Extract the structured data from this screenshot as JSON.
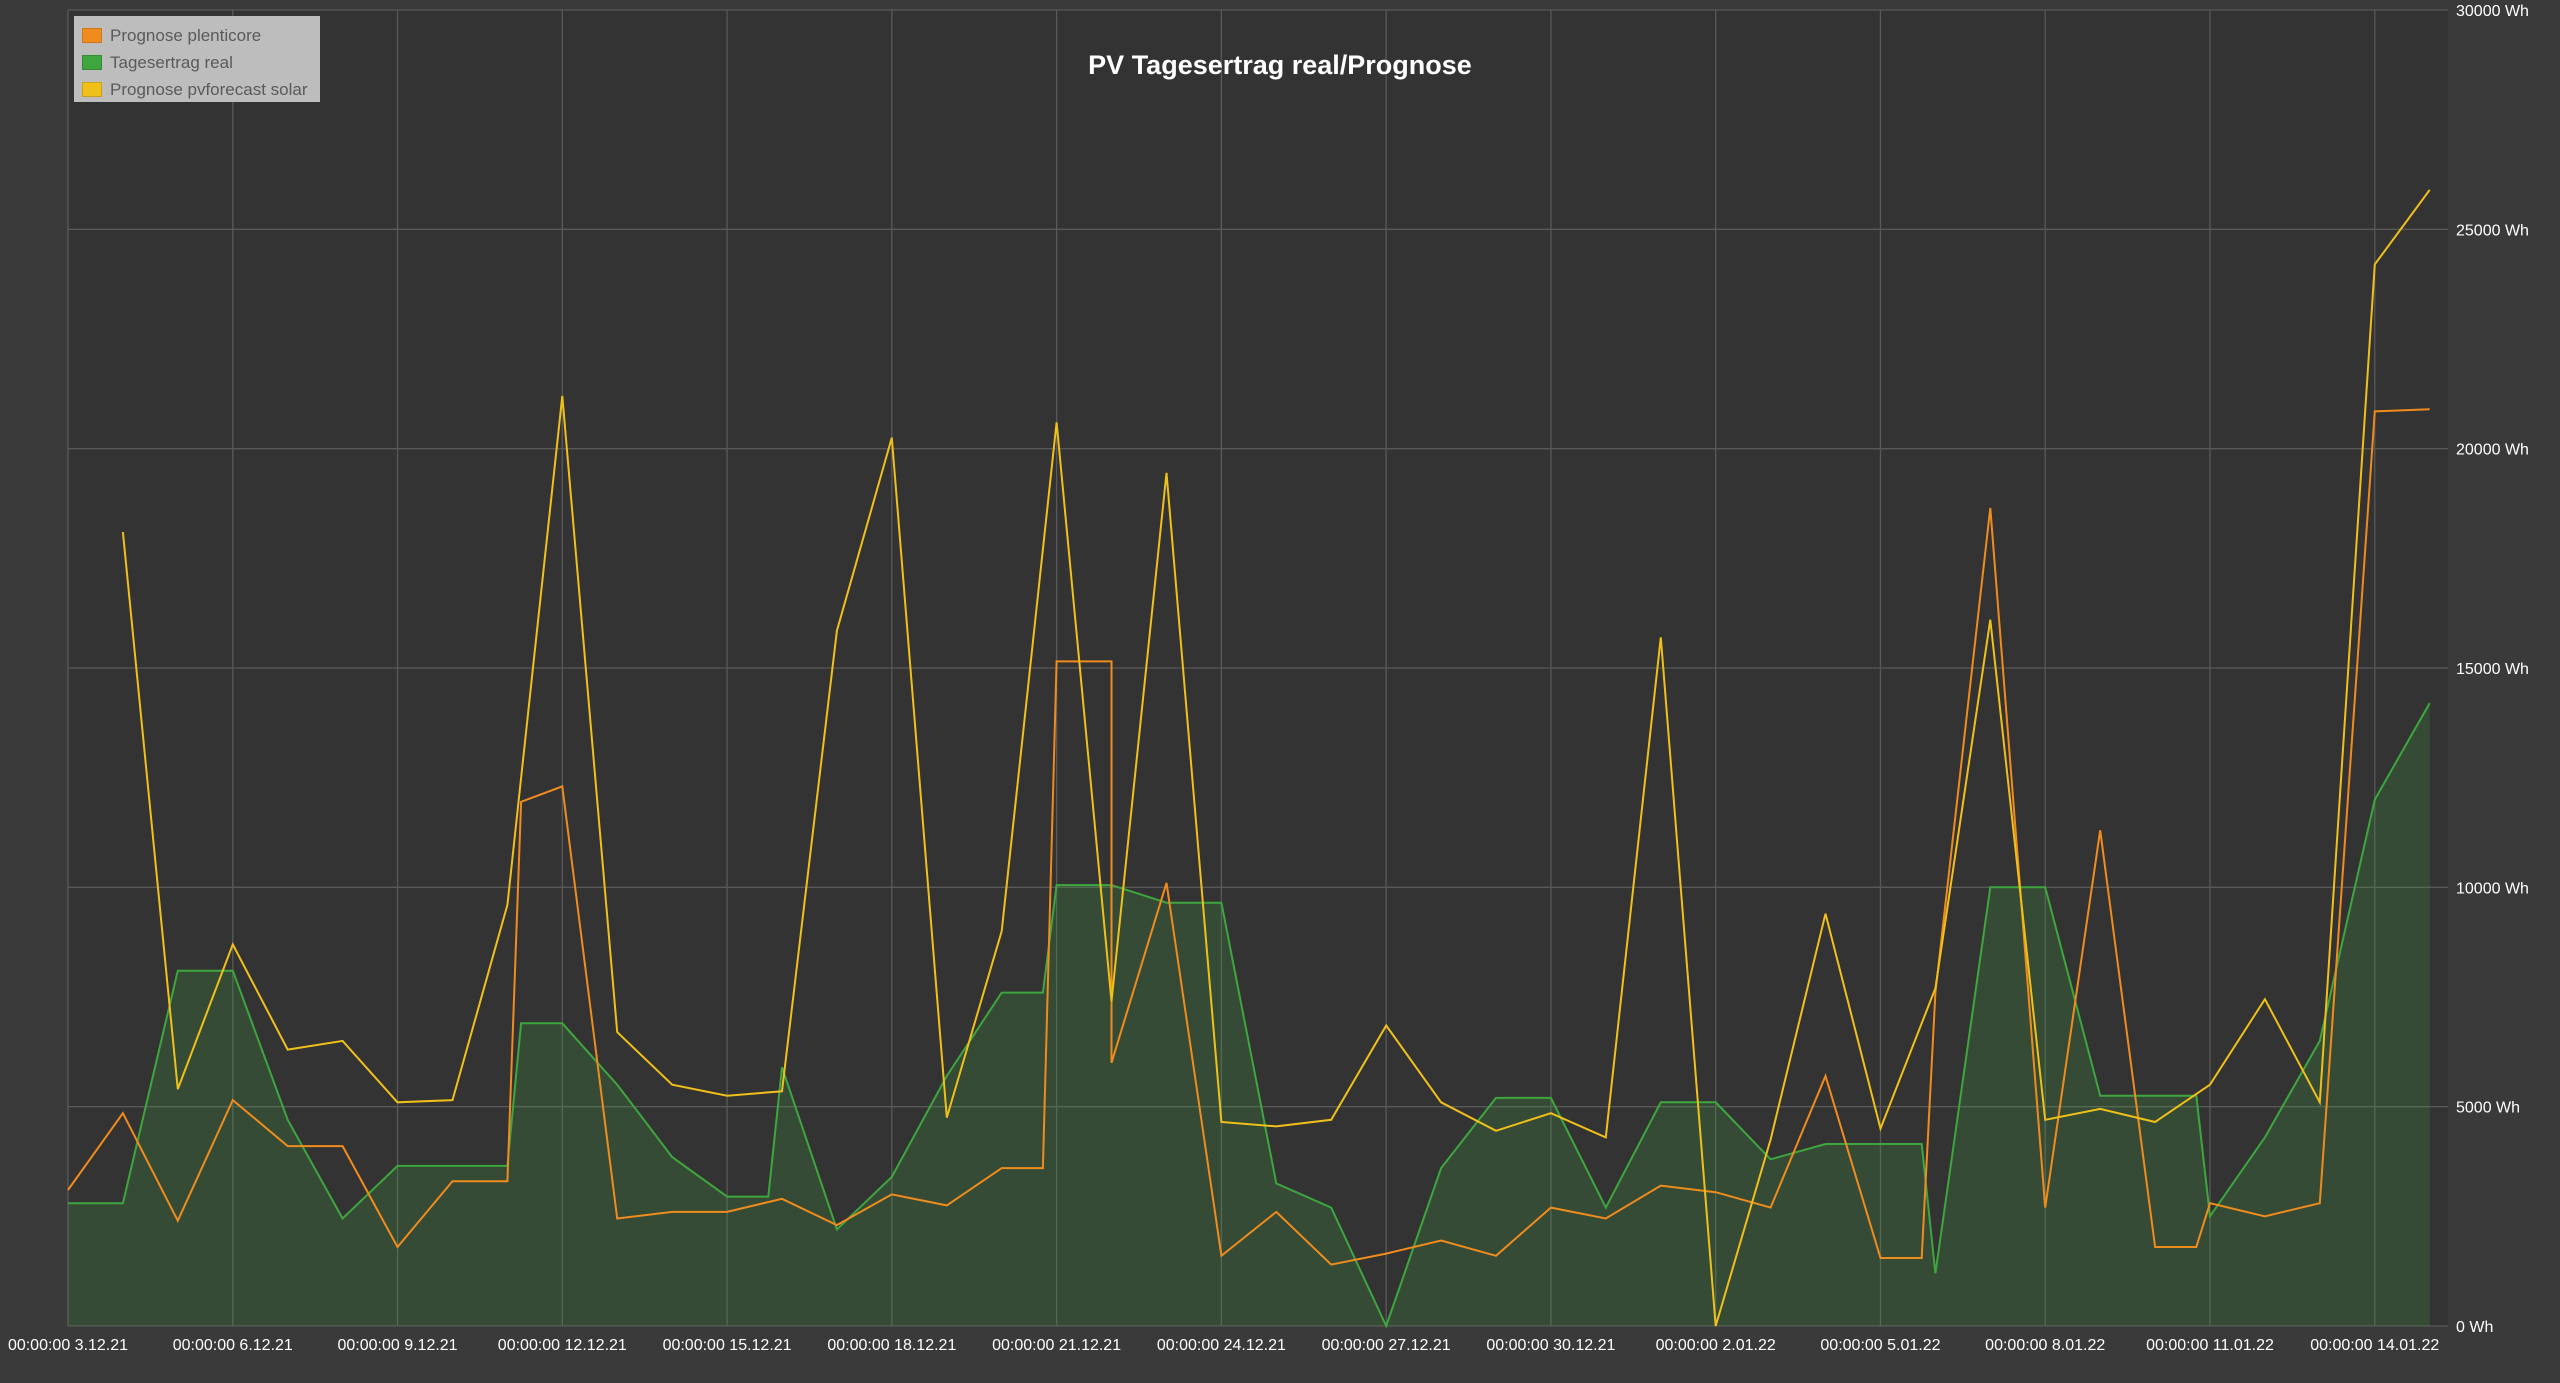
{
  "chart_data": {
    "type": "area",
    "title": "PV Tagesertrag real/Prognose",
    "xlabel": "",
    "ylabel": "",
    "ylim": [
      0,
      30000
    ],
    "y_unit": "Wh",
    "y_ticks": [
      "0 Wh",
      "5000 Wh",
      "10000 Wh",
      "15000 Wh",
      "20000 Wh",
      "25000 Wh",
      "30000 Wh"
    ],
    "y_tick_values": [
      0,
      5000,
      10000,
      15000,
      20000,
      25000,
      30000
    ],
    "x_ticks": [
      "00:00:00 3.12.21",
      "00:00:00 6.12.21",
      "00:00:00 9.12.21",
      "00:00:00 12.12.21",
      "00:00:00 15.12.21",
      "00:00:00 18.12.21",
      "00:00:00 21.12.21",
      "00:00:00 24.12.21",
      "00:00:00 27.12.21",
      "00:00:00 30.12.21",
      "00:00:00 2.01.22",
      "00:00:00 5.01.22",
      "00:00:00 8.01.22",
      "00:00:00 11.01.22",
      "00:00:00 14.01.22"
    ],
    "grid": true,
    "legend_position": "top-left",
    "series": [
      {
        "name": "Prognose plenticore",
        "color": "#f08c1e",
        "style": "line",
        "points": [
          [
            "2021-12-03 00:00",
            3100
          ],
          [
            "2021-12-04 00:00",
            4850
          ],
          [
            "2021-12-05 00:00",
            2400
          ],
          [
            "2021-12-06 00:00",
            5150
          ],
          [
            "2021-12-07 00:00",
            4100
          ],
          [
            "2021-12-08 00:00",
            4100
          ],
          [
            "2021-12-09 00:00",
            1800
          ],
          [
            "2021-12-10 00:00",
            3300
          ],
          [
            "2021-12-11 00:00",
            3300
          ],
          [
            "2021-12-11 06:00",
            11950
          ],
          [
            "2021-12-12 00:00",
            12300
          ],
          [
            "2021-12-13 00:00",
            2450
          ],
          [
            "2021-12-14 00:00",
            2600
          ],
          [
            "2021-12-15 00:00",
            2600
          ],
          [
            "2021-12-16 00:00",
            2900
          ],
          [
            "2021-12-17 00:00",
            2300
          ],
          [
            "2021-12-18 00:00",
            3000
          ],
          [
            "2021-12-19 00:00",
            2750
          ],
          [
            "2021-12-20 00:00",
            3600
          ],
          [
            "2021-12-20 18:00",
            3600
          ],
          [
            "2021-12-21 00:00",
            15150
          ],
          [
            "2021-12-22 00:00",
            15150
          ],
          [
            "2021-12-22 00:00",
            6000
          ],
          [
            "2021-12-23 00:00",
            10100
          ],
          [
            "2021-12-24 00:00",
            1600
          ],
          [
            "2021-12-25 00:00",
            2600
          ],
          [
            "2021-12-26 00:00",
            1400
          ],
          [
            "2021-12-27 00:00",
            1650
          ],
          [
            "2021-12-28 00:00",
            1950
          ],
          [
            "2021-12-29 00:00",
            1600
          ],
          [
            "2021-12-30 00:00",
            2700
          ],
          [
            "2021-12-31 00:00",
            2450
          ],
          [
            "2022-01-01 00:00",
            3200
          ],
          [
            "2022-01-02 00:00",
            3050
          ],
          [
            "2022-01-03 00:00",
            2700
          ],
          [
            "2022-01-04 00:00",
            5700
          ],
          [
            "2022-01-05 00:00",
            1550
          ],
          [
            "2022-01-05 18:00",
            1550
          ],
          [
            "2022-01-06 00:00",
            7600
          ],
          [
            "2022-01-07 00:00",
            18650
          ],
          [
            "2022-01-08 00:00",
            2700
          ],
          [
            "2022-01-09 00:00",
            11300
          ],
          [
            "2022-01-10 00:00",
            1800
          ],
          [
            "2022-01-10 18:00",
            1800
          ],
          [
            "2022-01-11 00:00",
            2800
          ],
          [
            "2022-01-12 00:00",
            2500
          ],
          [
            "2022-01-13 00:00",
            2800
          ],
          [
            "2022-01-14 00:00",
            20850
          ],
          [
            "2022-01-15 00:00",
            20900
          ]
        ]
      },
      {
        "name": "Tagesertrag real",
        "color": "#3ea63e",
        "style": "area",
        "points": [
          [
            "2021-12-03 00:00",
            2800
          ],
          [
            "2021-12-04 00:00",
            2800
          ],
          [
            "2021-12-05 00:00",
            8100
          ],
          [
            "2021-12-06 00:00",
            8100
          ],
          [
            "2021-12-07 00:00",
            4700
          ],
          [
            "2021-12-08 00:00",
            2450
          ],
          [
            "2021-12-09 00:00",
            3650
          ],
          [
            "2021-12-10 00:00",
            3650
          ],
          [
            "2021-12-11 00:00",
            3650
          ],
          [
            "2021-12-11 06:00",
            6900
          ],
          [
            "2021-12-12 00:00",
            6900
          ],
          [
            "2021-12-13 00:00",
            5500
          ],
          [
            "2021-12-14 00:00",
            3850
          ],
          [
            "2021-12-15 00:00",
            2950
          ],
          [
            "2021-12-15 18:00",
            2950
          ],
          [
            "2021-12-16 00:00",
            5900
          ],
          [
            "2021-12-17 00:00",
            2200
          ],
          [
            "2021-12-18 00:00",
            3400
          ],
          [
            "2021-12-19 00:00",
            5700
          ],
          [
            "2021-12-20 00:00",
            7600
          ],
          [
            "2021-12-20 18:00",
            7600
          ],
          [
            "2021-12-21 00:00",
            10050
          ],
          [
            "2021-12-22 00:00",
            10050
          ],
          [
            "2021-12-23 00:00",
            9650
          ],
          [
            "2021-12-24 00:00",
            9650
          ],
          [
            "2021-12-25 00:00",
            3250
          ],
          [
            "2021-12-26 00:00",
            2700
          ],
          [
            "2021-12-27 00:00",
            0
          ],
          [
            "2021-12-28 00:00",
            3600
          ],
          [
            "2021-12-29 00:00",
            5200
          ],
          [
            "2021-12-30 00:00",
            5200
          ],
          [
            "2021-12-31 00:00",
            2700
          ],
          [
            "2022-01-01 00:00",
            5100
          ],
          [
            "2022-01-02 00:00",
            5100
          ],
          [
            "2022-01-03 00:00",
            3800
          ],
          [
            "2022-01-04 00:00",
            4150
          ],
          [
            "2022-01-05 00:00",
            4150
          ],
          [
            "2022-01-05 18:00",
            4150
          ],
          [
            "2022-01-06 00:00",
            1200
          ],
          [
            "2022-01-07 00:00",
            10000
          ],
          [
            "2022-01-08 00:00",
            10000
          ],
          [
            "2022-01-09 00:00",
            5250
          ],
          [
            "2022-01-10 00:00",
            5250
          ],
          [
            "2022-01-10 18:00",
            5250
          ],
          [
            "2022-01-11 00:00",
            2500
          ],
          [
            "2022-01-12 00:00",
            4300
          ],
          [
            "2022-01-13 00:00",
            6500
          ],
          [
            "2022-01-14 00:00",
            12000
          ],
          [
            "2022-01-15 00:00",
            14200
          ]
        ]
      },
      {
        "name": "Prognose pvforecast solar",
        "color": "#f0c01a",
        "style": "line",
        "points": [
          [
            "2021-12-04 00:00",
            18100
          ],
          [
            "2021-12-05 00:00",
            5400
          ],
          [
            "2021-12-06 00:00",
            8700
          ],
          [
            "2021-12-07 00:00",
            6300
          ],
          [
            "2021-12-08 00:00",
            6500
          ],
          [
            "2021-12-09 00:00",
            5100
          ],
          [
            "2021-12-10 00:00",
            5150
          ],
          [
            "2021-12-11 00:00",
            9600
          ],
          [
            "2021-12-12 00:00",
            21200
          ],
          [
            "2021-12-13 00:00",
            6700
          ],
          [
            "2021-12-14 00:00",
            5500
          ],
          [
            "2021-12-15 00:00",
            5250
          ],
          [
            "2021-12-16 00:00",
            5350
          ],
          [
            "2021-12-17 00:00",
            15850
          ],
          [
            "2021-12-18 00:00",
            20250
          ],
          [
            "2021-12-19 00:00",
            4750
          ],
          [
            "2021-12-20 00:00",
            9000
          ],
          [
            "2021-12-21 00:00",
            20600
          ],
          [
            "2021-12-22 00:00",
            7400
          ],
          [
            "2021-12-23 00:00",
            19450
          ],
          [
            "2021-12-24 00:00",
            4650
          ],
          [
            "2021-12-25 00:00",
            4550
          ],
          [
            "2021-12-26 00:00",
            4700
          ],
          [
            "2021-12-27 00:00",
            6850
          ],
          [
            "2021-12-28 00:00",
            5100
          ],
          [
            "2021-12-29 00:00",
            4450
          ],
          [
            "2021-12-30 00:00",
            4850
          ],
          [
            "2021-12-31 00:00",
            4300
          ],
          [
            "2022-01-01 00:00",
            15700
          ],
          [
            "2022-01-02 00:00",
            0
          ],
          [
            "2022-01-03 00:00",
            4250
          ],
          [
            "2022-01-04 00:00",
            9400
          ],
          [
            "2022-01-05 00:00",
            4500
          ],
          [
            "2022-01-06 00:00",
            7700
          ],
          [
            "2022-01-07 00:00",
            16100
          ],
          [
            "2022-01-08 00:00",
            4700
          ],
          [
            "2022-01-09 00:00",
            4950
          ],
          [
            "2022-01-10 00:00",
            4650
          ],
          [
            "2022-01-11 00:00",
            5500
          ],
          [
            "2022-01-12 00:00",
            7450
          ],
          [
            "2022-01-13 00:00",
            5100
          ],
          [
            "2022-01-14 00:00",
            24200
          ],
          [
            "2022-01-15 00:00",
            25900
          ]
        ]
      }
    ]
  }
}
